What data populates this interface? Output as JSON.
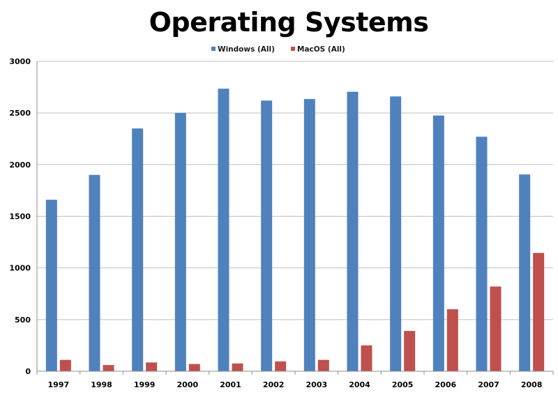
{
  "chart_data": {
    "type": "bar",
    "title": "Operating Systems",
    "xlabel": "",
    "ylabel": "",
    "categories": [
      "1997",
      "1998",
      "1999",
      "2000",
      "2001",
      "2002",
      "2003",
      "2004",
      "2005",
      "2006",
      "2007",
      "2008"
    ],
    "series": [
      {
        "name": "Windows (All)",
        "color": "#4f81bd",
        "values": [
          1660,
          1900,
          2350,
          2500,
          2735,
          2620,
          2635,
          2705,
          2660,
          2475,
          2270,
          1905
        ]
      },
      {
        "name": "MacOS (All)",
        "color": "#c0504d",
        "values": [
          110,
          60,
          85,
          70,
          75,
          95,
          110,
          250,
          390,
          600,
          820,
          1145
        ]
      }
    ],
    "ylim": [
      0,
      3000
    ],
    "yticks": [
      "0",
      "500",
      "1000",
      "1500",
      "2000",
      "2500",
      "3000"
    ],
    "grid": true,
    "legend_position": "top"
  }
}
